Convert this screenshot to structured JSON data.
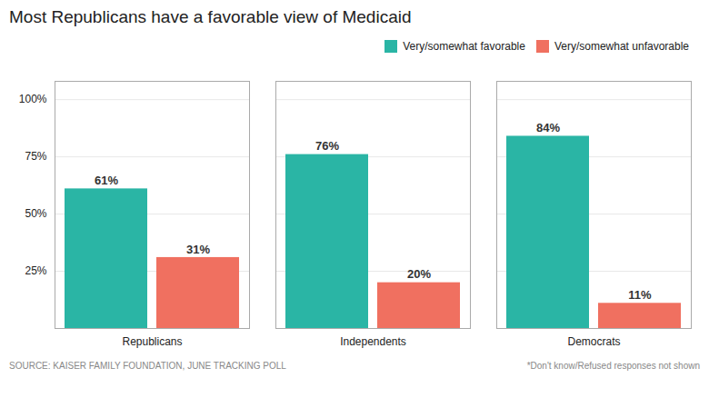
{
  "chart_data": {
    "type": "bar",
    "title": "Most Republicans have a favorable view of Medicaid",
    "categories": [
      "Republicans",
      "Independents",
      "Democrats"
    ],
    "series": [
      {
        "name": "Very/somewhat favorable",
        "color": "#2ab5a5",
        "values": [
          61,
          76,
          84
        ],
        "value_labels": [
          "61%",
          "76%",
          "84%"
        ]
      },
      {
        "name": "Very/somewhat unfavorable",
        "color": "#f07060",
        "values": [
          31,
          20,
          11
        ],
        "value_labels": [
          "31%",
          "20%",
          "11%"
        ]
      }
    ],
    "ylim": [
      0,
      108
    ],
    "yticks": [
      {
        "value": 100,
        "label": "100%"
      },
      {
        "value": 75,
        "label": "75%"
      },
      {
        "value": 50,
        "label": "50%"
      },
      {
        "value": 25,
        "label": "25%"
      }
    ],
    "grid": true,
    "legend": "upper right",
    "data_labels": true,
    "annotations": [
      "SOURCE: KAISER FAMILY FOUNDATION, JUNE TRACKING POLL",
      "*Don't know/Refused responses not shown"
    ]
  }
}
